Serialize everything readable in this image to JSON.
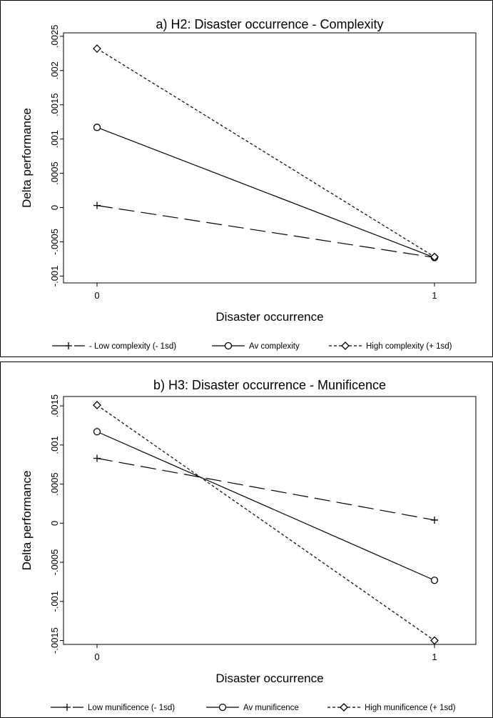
{
  "chart_data": [
    {
      "type": "line",
      "title": "a) H2: Disaster occurrence - Complexity",
      "xlabel": "Disaster occurrence",
      "ylabel": "Delta performance",
      "x": [
        0,
        1
      ],
      "x_ticks": [
        "0",
        "1"
      ],
      "ylim": [
        -0.0011,
        0.00255
      ],
      "y_ticks": [
        {
          "v": -0.001,
          "label": "-.001"
        },
        {
          "v": -0.0005,
          "label": "-.0005"
        },
        {
          "v": 0,
          "label": "0"
        },
        {
          "v": 0.0005,
          "label": ".0005"
        },
        {
          "v": 0.001,
          "label": ".001"
        },
        {
          "v": 0.0015,
          "label": ".0015"
        },
        {
          "v": 0.002,
          "label": ".002"
        },
        {
          "v": 0.0025,
          "label": ".0025"
        }
      ],
      "grid": false,
      "legend": "bottom",
      "series": [
        {
          "name": "- Low complexity (- 1sd)",
          "values": [
            3e-05,
            -0.00073
          ],
          "marker": "plus",
          "dash": "long-dash"
        },
        {
          "name": "Av complexity",
          "values": [
            0.00117,
            -0.00073
          ],
          "marker": "circle",
          "dash": "solid"
        },
        {
          "name": "High complexity (+ 1sd)",
          "values": [
            0.00232,
            -0.00072
          ],
          "marker": "diamond",
          "dash": "short-dash"
        }
      ]
    },
    {
      "type": "line",
      "title": "b) H3: Disaster occurrence - Munificence",
      "xlabel": "Disaster occurrence",
      "ylabel": "Delta performance",
      "x": [
        0,
        1
      ],
      "x_ticks": [
        "0",
        "1"
      ],
      "ylim": [
        -0.00155,
        0.00162
      ],
      "y_ticks": [
        {
          "v": -0.0015,
          "label": "-.0015"
        },
        {
          "v": -0.001,
          "label": "-.001"
        },
        {
          "v": -0.0005,
          "label": "-.0005"
        },
        {
          "v": 0,
          "label": "0"
        },
        {
          "v": 0.0005,
          "label": ".0005"
        },
        {
          "v": 0.001,
          "label": ".001"
        },
        {
          "v": 0.0015,
          "label": ".0015"
        }
      ],
      "grid": false,
      "legend": "bottom",
      "series": [
        {
          "name": "Low munificence (- 1sd)",
          "values": [
            0.00083,
            4e-05
          ],
          "marker": "plus",
          "dash": "long-dash"
        },
        {
          "name": "Av munificence",
          "values": [
            0.00117,
            -0.00073
          ],
          "marker": "circle",
          "dash": "solid"
        },
        {
          "name": "High munificence (+ 1sd)",
          "values": [
            0.00151,
            -0.0015
          ],
          "marker": "diamond",
          "dash": "short-dash"
        }
      ]
    }
  ]
}
